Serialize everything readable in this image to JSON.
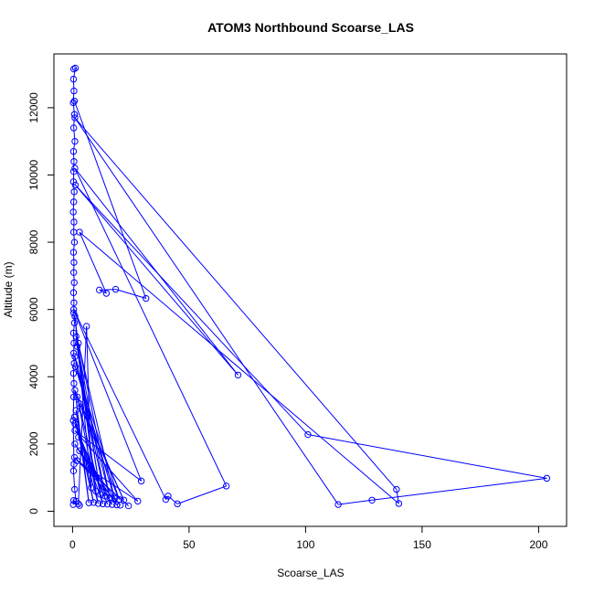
{
  "chart_data": {
    "type": "line",
    "title": "ATOM3 Northbound Scoarse_LAS",
    "xlabel": "Scoarse_LAS",
    "ylabel": "Altitude (m)",
    "xlim": [
      -8,
      212
    ],
    "ylim": [
      -450,
      13600
    ],
    "x_ticks": [
      0,
      50,
      100,
      150,
      200
    ],
    "y_ticks": [
      0,
      2000,
      4000,
      6000,
      8000,
      10000,
      12000
    ],
    "series": [
      {
        "color": "#0000ff",
        "marker": "open-circle",
        "points": [
          [
            0.5,
            13150
          ],
          [
            1.2,
            13180
          ],
          [
            0.4,
            12850
          ],
          [
            0.6,
            12500
          ],
          [
            0.3,
            12150
          ],
          [
            0.8,
            11800
          ],
          [
            0.5,
            11400
          ],
          [
            1.0,
            11000
          ],
          [
            0.4,
            10700
          ],
          [
            0.6,
            10400
          ],
          [
            0.5,
            10100
          ],
          [
            0.4,
            9800
          ],
          [
            0.7,
            9500
          ],
          [
            0.5,
            9200
          ],
          [
            0.3,
            8900
          ],
          [
            0.6,
            8600
          ],
          [
            0.5,
            8300
          ],
          [
            0.8,
            8000
          ],
          [
            0.4,
            7700
          ],
          [
            0.6,
            7400
          ],
          [
            0.5,
            7100
          ],
          [
            0.7,
            6800
          ],
          [
            0.4,
            6500
          ],
          [
            0.6,
            6200
          ],
          [
            0.5,
            5900
          ],
          [
            0.8,
            5600
          ],
          [
            0.4,
            5300
          ],
          [
            0.6,
            5000
          ],
          [
            0.5,
            4700
          ],
          [
            0.7,
            4400
          ],
          [
            0.4,
            4100
          ],
          [
            0.6,
            3800
          ],
          [
            0.5,
            3400
          ],
          [
            0.3,
            2700
          ],
          [
            0.6,
            1400
          ],
          [
            0.4,
            1200
          ],
          [
            0.9,
            650
          ],
          [
            1.5,
            300
          ],
          [
            0.3,
            200
          ],
          [
            0.5,
            320
          ],
          [
            3.0,
            170
          ],
          [
            2.5,
            220
          ],
          [
            6.0,
            5500
          ],
          [
            8.0,
            700
          ],
          [
            1.0,
            5800
          ],
          [
            10.0,
            600
          ],
          [
            2.0,
            4900
          ],
          [
            12.0,
            500
          ],
          [
            1.5,
            5200
          ],
          [
            14.0,
            450
          ],
          [
            1.0,
            4600
          ],
          [
            16.0,
            400
          ],
          [
            2.5,
            5000
          ],
          [
            18.0,
            380
          ],
          [
            1.2,
            4300
          ],
          [
            20.0,
            350
          ],
          [
            3.0,
            3200
          ],
          [
            22.0,
            330
          ],
          [
            1.0,
            3600
          ],
          [
            7.0,
            250
          ],
          [
            1.5,
            3000
          ],
          [
            9.0,
            260
          ],
          [
            0.8,
            2800
          ],
          [
            11.0,
            230
          ],
          [
            2.0,
            3400
          ],
          [
            13.0,
            220
          ],
          [
            1.0,
            2600
          ],
          [
            15.0,
            210
          ],
          [
            2.5,
            2200
          ],
          [
            17.0,
            200
          ],
          [
            1.0,
            2000
          ],
          [
            19.0,
            190
          ],
          [
            3.0,
            1800
          ],
          [
            20.5,
            180
          ],
          [
            0.8,
            1600
          ],
          [
            24.0,
            160
          ],
          [
            2.0,
            1500
          ],
          [
            28.0,
            300
          ],
          [
            1.0,
            2400
          ],
          [
            29.5,
            900
          ],
          [
            0.5,
            6000
          ],
          [
            40.0,
            350
          ],
          [
            41.0,
            450
          ],
          [
            45.0,
            220
          ],
          [
            66.0,
            750
          ],
          [
            1.0,
            10200
          ],
          [
            71.0,
            4050
          ],
          [
            1.2,
            9700
          ],
          [
            101.0,
            2280
          ],
          [
            203.5,
            980
          ],
          [
            128.5,
            330
          ],
          [
            114.0,
            200
          ],
          [
            1.0,
            11700
          ],
          [
            139.0,
            650
          ],
          [
            140.0,
            230
          ],
          [
            3.0,
            8300
          ],
          [
            14.5,
            6480
          ],
          [
            11.5,
            6580
          ],
          [
            18.5,
            6600
          ],
          [
            31.5,
            6330
          ],
          [
            0.8,
            12200
          ]
        ]
      }
    ],
    "grid": false,
    "legend": "none"
  }
}
